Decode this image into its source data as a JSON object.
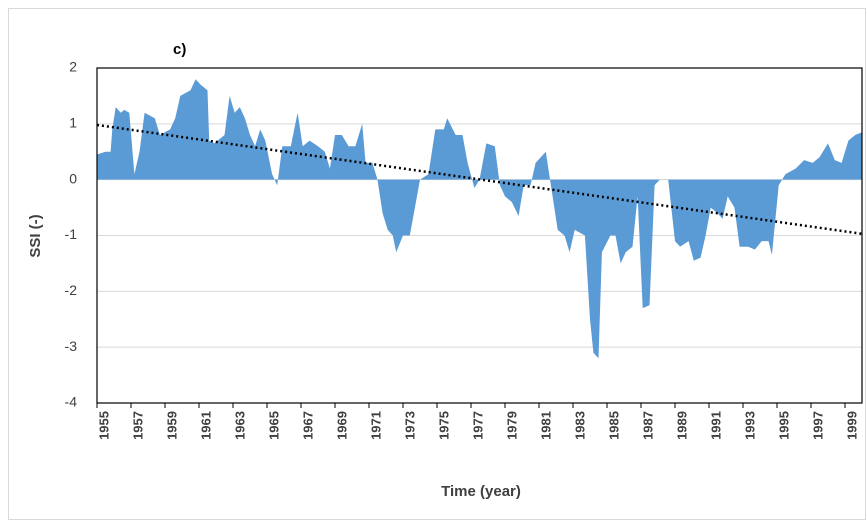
{
  "chart_data": {
    "type": "area",
    "title": "c)",
    "y_label": "SSI (-)",
    "x_label": "Time (year)",
    "x": [
      1955.0,
      1955.5,
      1955.8,
      1955.9,
      1956.1,
      1956.4,
      1956.6,
      1956.9,
      1957.2,
      1957.5,
      1957.8,
      1958.4,
      1958.7,
      1959.3,
      1959.6,
      1959.9,
      1960.5,
      1960.8,
      1961.1,
      1961.5,
      1961.6,
      1961.9,
      1962.5,
      1962.8,
      1963.1,
      1963.4,
      1963.7,
      1964.0,
      1964.3,
      1964.6,
      1964.9,
      1965.3,
      1965.6,
      1965.9,
      1966.4,
      1966.8,
      1967.1,
      1967.5,
      1968.0,
      1968.4,
      1968.7,
      1969.0,
      1969.4,
      1969.8,
      1970.2,
      1970.6,
      1970.8,
      1971.2,
      1971.5,
      1971.8,
      1972.1,
      1972.4,
      1972.6,
      1973.0,
      1973.4,
      1973.7,
      1974.0,
      1974.5,
      1974.9,
      1975.4,
      1975.6,
      1976.1,
      1976.5,
      1976.8,
      1977.2,
      1977.5,
      1977.9,
      1978.4,
      1978.7,
      1979.0,
      1979.4,
      1979.8,
      1980.1,
      1980.5,
      1980.8,
      1981.4,
      1981.6,
      1982.1,
      1982.5,
      1982.8,
      1983.1,
      1983.7,
      1984.0,
      1984.2,
      1984.5,
      1984.7,
      1985.2,
      1985.5,
      1985.8,
      1986.1,
      1986.5,
      1986.8,
      1987.1,
      1987.5,
      1987.8,
      1988.1,
      1988.6,
      1989.0,
      1989.3,
      1989.8,
      1990.1,
      1990.5,
      1990.8,
      1991.1,
      1991.5,
      1991.8,
      1992.1,
      1992.5,
      1992.8,
      1993.3,
      1993.7,
      1994.1,
      1994.5,
      1994.7,
      1995.1,
      1995.5,
      1996.1,
      1996.6,
      1997.1,
      1997.5,
      1998.0,
      1998.4,
      1998.8,
      1999.2,
      1999.6,
      2000.0
    ],
    "values": [
      0.45,
      0.5,
      0.5,
      0.9,
      1.3,
      1.2,
      1.25,
      1.2,
      0.1,
      0.5,
      1.2,
      1.1,
      0.8,
      0.9,
      1.1,
      1.5,
      1.6,
      1.8,
      1.7,
      1.6,
      0.7,
      0.65,
      0.8,
      1.5,
      1.2,
      1.3,
      1.1,
      0.8,
      0.6,
      0.9,
      0.7,
      0.1,
      -0.1,
      0.6,
      0.6,
      1.2,
      0.6,
      0.7,
      0.6,
      0.5,
      0.2,
      0.8,
      0.8,
      0.6,
      0.6,
      1.0,
      0.3,
      0.3,
      0,
      -0.6,
      -0.9,
      -1.0,
      -1.3,
      -1.0,
      -1.0,
      -0.5,
      0,
      0.1,
      0.9,
      0.9,
      1.1,
      0.8,
      0.8,
      0.3,
      -0.15,
      0,
      0.65,
      0.6,
      -0.1,
      -0.3,
      -0.4,
      -0.65,
      -0.1,
      -0.1,
      0.3,
      0.5,
      0.1,
      -0.9,
      -1.0,
      -1.3,
      -0.9,
      -1.0,
      -2.5,
      -3.1,
      -3.2,
      -1.3,
      -1.0,
      -1.0,
      -1.5,
      -1.3,
      -1.2,
      -0.3,
      -2.3,
      -2.25,
      -0.1,
      0,
      0,
      -1.1,
      -1.2,
      -1.1,
      -1.45,
      -1.4,
      -1.0,
      -0.5,
      -0.6,
      -0.7,
      -0.3,
      -0.5,
      -1.2,
      -1.2,
      -1.25,
      -1.1,
      -1.1,
      -1.35,
      -0.1,
      0.1,
      0.2,
      0.35,
      0.3,
      0.4,
      0.65,
      0.35,
      0.3,
      0.7,
      0.8,
      0.85
    ],
    "color": "#5b9bd5",
    "trend": {
      "x": [
        1955,
        2000
      ],
      "values": [
        0.98,
        -0.97
      ],
      "color": "#000000"
    },
    "xlim": [
      1955,
      2000
    ],
    "ylim": [
      -4,
      2
    ],
    "xticks": [
      1955,
      1957,
      1959,
      1961,
      1963,
      1965,
      1967,
      1969,
      1971,
      1973,
      1975,
      1977,
      1979,
      1981,
      1983,
      1985,
      1987,
      1989,
      1991,
      1993,
      1995,
      1997,
      1999
    ],
    "yticks": [
      -4,
      -3,
      -2,
      -1,
      0,
      1,
      2
    ],
    "grid": true
  }
}
